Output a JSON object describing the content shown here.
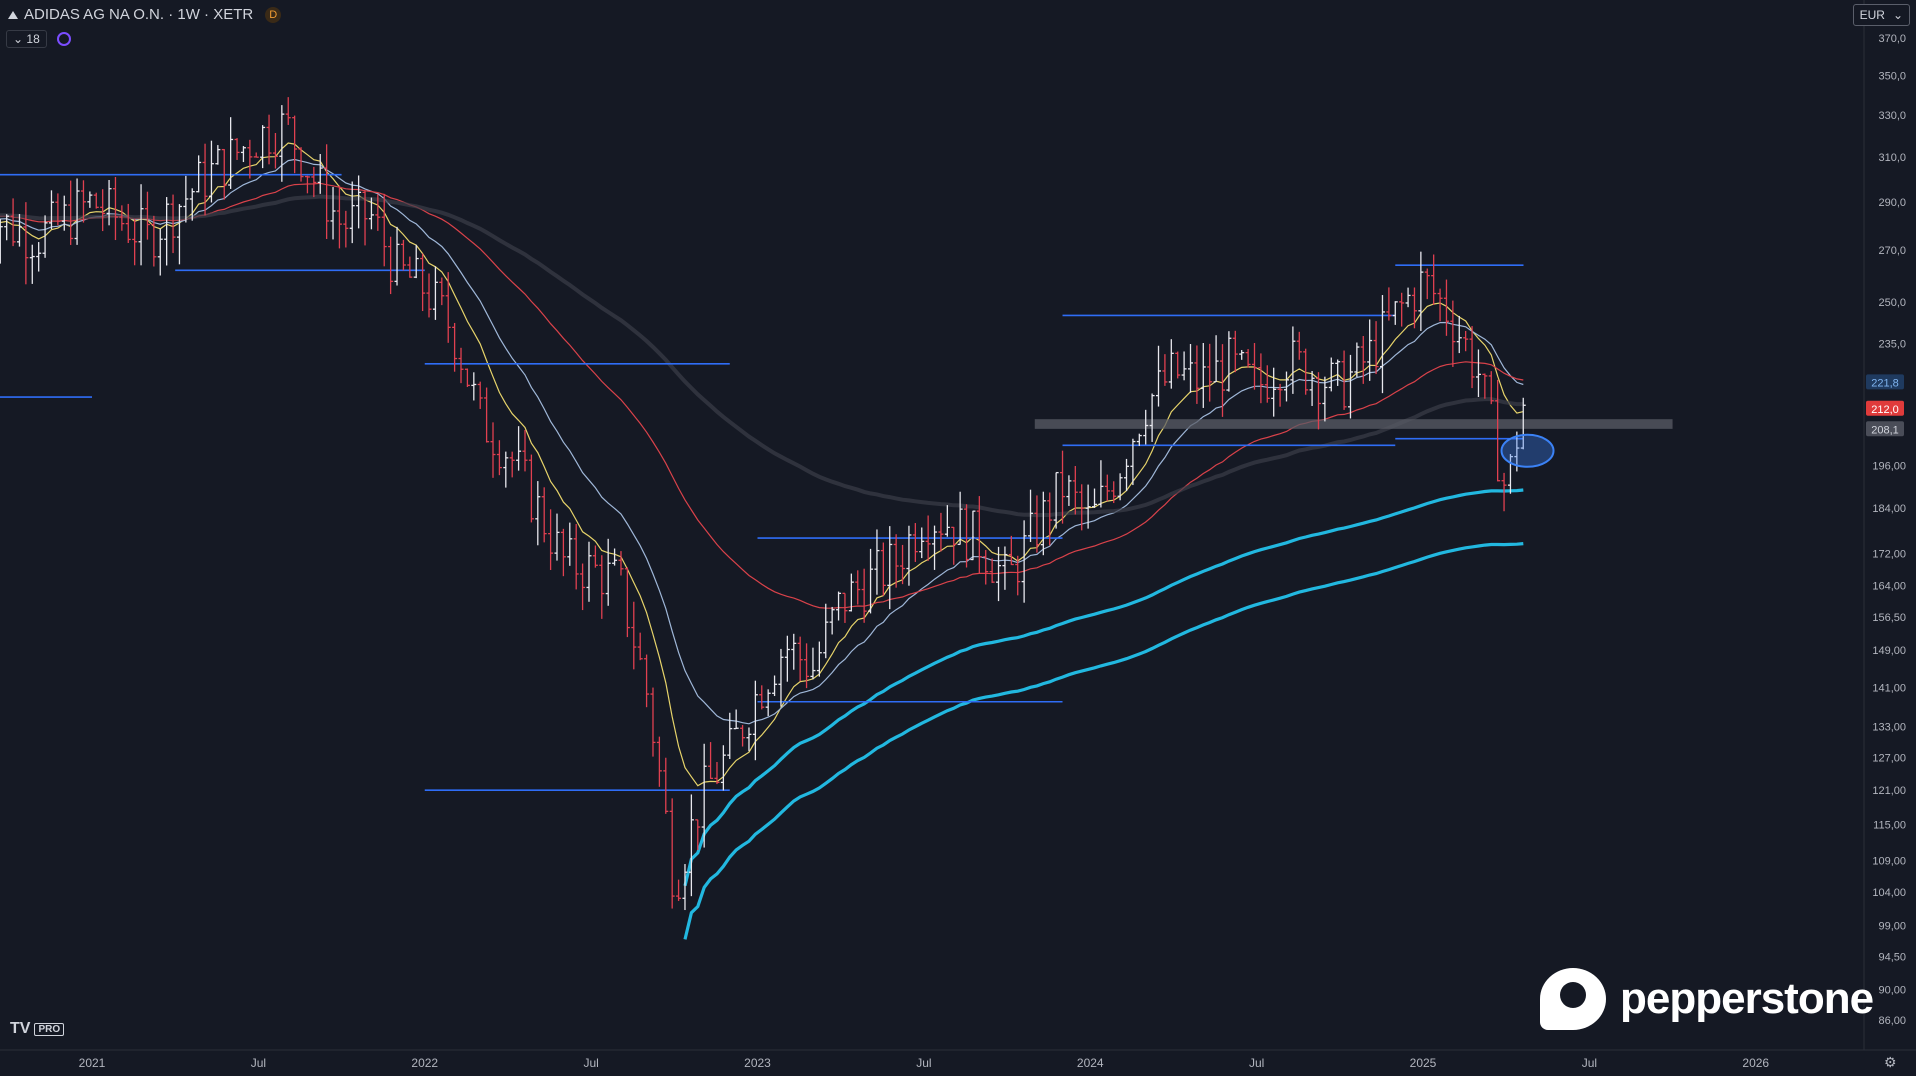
{
  "header": {
    "symbol": "ADIDAS AG NA O.N. · 1W · XETR",
    "data_badge": "D",
    "indicator_count": "18",
    "currency": "EUR"
  },
  "branding": {
    "logo_text": "pepperstone",
    "tv_logo": "TV",
    "tv_pro": "PRO"
  },
  "chart_data": {
    "type": "candlestick",
    "title": "ADIDAS AG NA O.N. · 1W · XETR",
    "x_axis": {
      "range": [
        "2020-09",
        "2026-03"
      ],
      "ticks": [
        {
          "label": "2021",
          "date": "2021-01"
        },
        {
          "label": "Jul",
          "date": "2021-07"
        },
        {
          "label": "2022",
          "date": "2022-01"
        },
        {
          "label": "Jul",
          "date": "2022-07"
        },
        {
          "label": "2023",
          "date": "2023-01"
        },
        {
          "label": "Jul",
          "date": "2023-07"
        },
        {
          "label": "2024",
          "date": "2024-01"
        },
        {
          "label": "Jul",
          "date": "2024-07"
        },
        {
          "label": "2025",
          "date": "2025-01"
        },
        {
          "label": "Jul",
          "date": "2025-07"
        },
        {
          "label": "2026",
          "date": "2026-01"
        }
      ]
    },
    "y_axis": {
      "scale": "log",
      "range": [
        85,
        375
      ],
      "tick_labels": [
        "370,0",
        "350,0",
        "330,0",
        "310,0",
        "290,0",
        "270,0",
        "250,0",
        "235,0",
        "196,00",
        "184,00",
        "172,00",
        "164,00",
        "156,50",
        "149,00",
        "141,00",
        "133,00",
        "127,00",
        "121,00",
        "115,00",
        "109,00",
        "104,00",
        "99,00",
        "94,50",
        "90,00",
        "86,00"
      ],
      "tick_values": [
        370,
        350,
        330,
        310,
        290,
        270,
        250,
        235,
        196,
        184,
        172,
        164,
        156.5,
        149,
        141,
        133,
        127,
        121,
        115,
        109,
        104,
        99,
        94.5,
        90,
        86
      ]
    },
    "price_path": [
      [
        "2020-09",
        285
      ],
      [
        "2020-11",
        275
      ],
      [
        "2021-01",
        290
      ],
      [
        "2021-03",
        275
      ],
      [
        "2021-05",
        300
      ],
      [
        "2021-07",
        320
      ],
      [
        "2021-08",
        325
      ],
      [
        "2021-09",
        300
      ],
      [
        "2021-10",
        280
      ],
      [
        "2021-11",
        285
      ],
      [
        "2021-12",
        262
      ],
      [
        "2022-01",
        255
      ],
      [
        "2022-02",
        240
      ],
      [
        "2022-03",
        210
      ],
      [
        "2022-04",
        200
      ],
      [
        "2022-05",
        185
      ],
      [
        "2022-06",
        170
      ],
      [
        "2022-07",
        168
      ],
      [
        "2022-08",
        165
      ],
      [
        "2022-09",
        140
      ],
      [
        "2022-10",
        105
      ],
      [
        "2022-11",
        120
      ],
      [
        "2022-12",
        128
      ],
      [
        "2023-01",
        140
      ],
      [
        "2023-02",
        150
      ],
      [
        "2023-03",
        145
      ],
      [
        "2023-04",
        160
      ],
      [
        "2023-05",
        165
      ],
      [
        "2023-06",
        170
      ],
      [
        "2023-07",
        182
      ],
      [
        "2023-08",
        180
      ],
      [
        "2023-09",
        175
      ],
      [
        "2023-10",
        165
      ],
      [
        "2023-11",
        178
      ],
      [
        "2023-12",
        190
      ],
      [
        "2024-01",
        180
      ],
      [
        "2024-02",
        195
      ],
      [
        "2024-03",
        215
      ],
      [
        "2024-04",
        225
      ],
      [
        "2024-05",
        222
      ],
      [
        "2024-06",
        228
      ],
      [
        "2024-07",
        220
      ],
      [
        "2024-08",
        230
      ],
      [
        "2024-09",
        225
      ],
      [
        "2024-10",
        220
      ],
      [
        "2024-11",
        230
      ],
      [
        "2024-12",
        245
      ],
      [
        "2025-01",
        258
      ],
      [
        "2025-02",
        245
      ],
      [
        "2025-03",
        225
      ],
      [
        "2025-04",
        188
      ],
      [
        "2025-04-20",
        215
      ]
    ],
    "series": [
      {
        "color": "#e6d36a"
      },
      {
        "color": "#9fb7d8"
      },
      {
        "color": "#d9424a"
      },
      {
        "color": "#3a3d48"
      },
      {
        "color": "#22b8e0"
      },
      {
        "color": "#22b8e0"
      }
    ],
    "price_labels": [
      {
        "text": "221,8",
        "value": 221.8,
        "color": "#7fb4f0",
        "bg": "#1f3a5f"
      },
      {
        "text": "212,0",
        "value": 212.0,
        "color": "#ffffff",
        "bg": "#e03b3b"
      },
      {
        "text": "208,1",
        "value": 208.1,
        "color": "#d1d4dc",
        "bg": "#4a4d58"
      }
    ],
    "horizontal_levels": [
      {
        "value": 302,
        "from": "2020-09",
        "to": "2021-10"
      },
      {
        "value": 262,
        "from": "2021-04",
        "to": "2022-01"
      },
      {
        "value": 217,
        "from": "2020-09",
        "to": "2021-01"
      },
      {
        "value": 228,
        "from": "2022-01",
        "to": "2022-12"
      },
      {
        "value": 121,
        "from": "2022-01",
        "to": "2022-12"
      },
      {
        "value": 176,
        "from": "2023-01",
        "to": "2023-12"
      },
      {
        "value": 138,
        "from": "2023-01",
        "to": "2023-12"
      },
      {
        "value": 245,
        "from": "2023-12",
        "to": "2024-12"
      },
      {
        "value": 202,
        "from": "2023-12",
        "to": "2024-12"
      },
      {
        "value": 264,
        "from": "2024-12",
        "to": "2025-04-20"
      },
      {
        "value": 204,
        "from": "2024-12",
        "to": "2025-04-20"
      }
    ],
    "support_zone": {
      "low": 207,
      "high": 210,
      "from": "2023-11",
      "to": "2025-10",
      "color": "#5a5c66"
    },
    "highlight_ellipse": {
      "date": "2025-04-20",
      "value": 198,
      "color": "#3b82f6"
    }
  }
}
